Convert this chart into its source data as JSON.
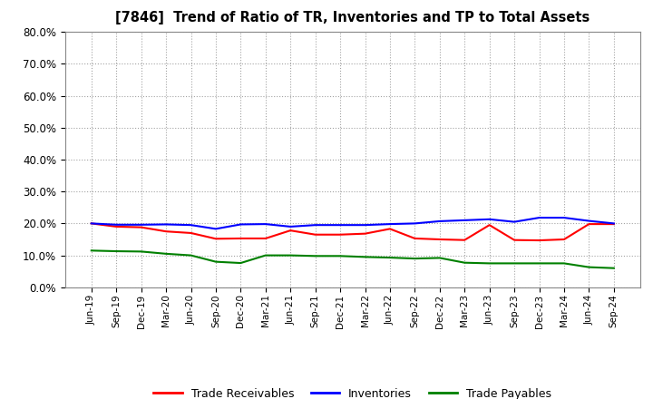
{
  "title": "[7846]  Trend of Ratio of TR, Inventories and TP to Total Assets",
  "x_labels": [
    "Jun-19",
    "Sep-19",
    "Dec-19",
    "Mar-20",
    "Jun-20",
    "Sep-20",
    "Dec-20",
    "Mar-21",
    "Jun-21",
    "Sep-21",
    "Dec-21",
    "Mar-22",
    "Jun-22",
    "Sep-22",
    "Dec-22",
    "Mar-23",
    "Jun-23",
    "Sep-23",
    "Dec-23",
    "Mar-24",
    "Jun-24",
    "Sep-24"
  ],
  "trade_receivables": [
    0.2,
    0.19,
    0.188,
    0.175,
    0.17,
    0.152,
    0.153,
    0.153,
    0.178,
    0.165,
    0.165,
    0.168,
    0.183,
    0.153,
    0.15,
    0.148,
    0.195,
    0.148,
    0.147,
    0.15,
    0.198,
    0.198
  ],
  "inventories": [
    0.2,
    0.196,
    0.196,
    0.197,
    0.195,
    0.183,
    0.197,
    0.198,
    0.19,
    0.195,
    0.195,
    0.195,
    0.198,
    0.2,
    0.207,
    0.21,
    0.213,
    0.205,
    0.218,
    0.218,
    0.208,
    0.2
  ],
  "trade_payables": [
    0.115,
    0.113,
    0.112,
    0.105,
    0.1,
    0.08,
    0.076,
    0.1,
    0.1,
    0.098,
    0.098,
    0.095,
    0.093,
    0.09,
    0.092,
    0.077,
    0.075,
    0.075,
    0.075,
    0.075,
    0.063,
    0.06
  ],
  "tr_color": "#ff0000",
  "inv_color": "#0000ff",
  "tp_color": "#008000",
  "bg_color": "#ffffff",
  "plot_bg_color": "#ffffff",
  "grid_color": "#999999",
  "ylim": [
    0.0,
    0.8
  ],
  "yticks": [
    0.0,
    0.1,
    0.2,
    0.3,
    0.4,
    0.5,
    0.6,
    0.7,
    0.8
  ],
  "legend_labels": [
    "Trade Receivables",
    "Inventories",
    "Trade Payables"
  ]
}
